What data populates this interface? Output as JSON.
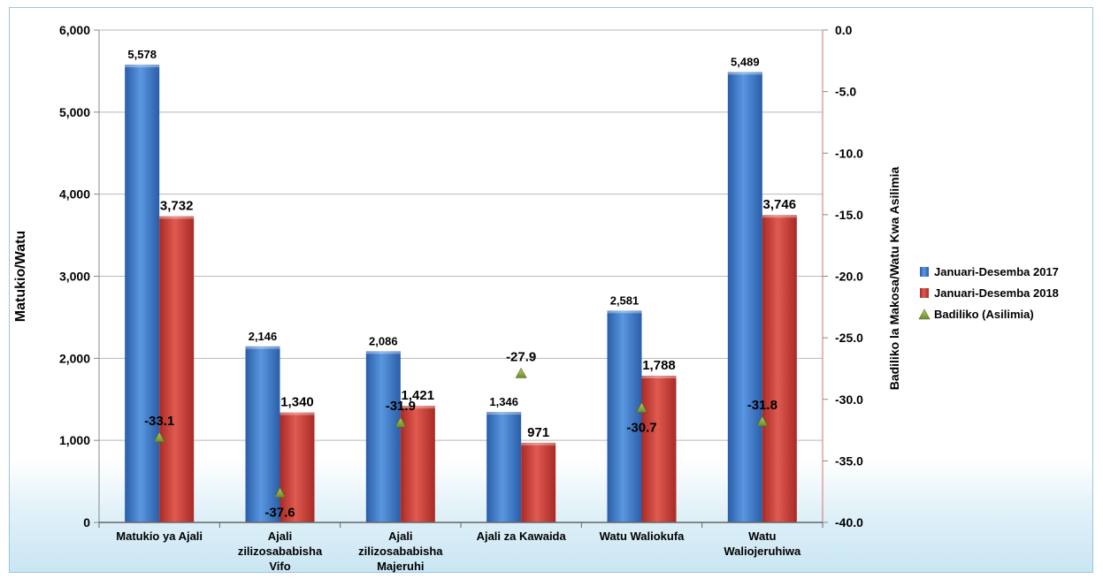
{
  "chart_data": {
    "type": "bar",
    "categories": [
      [
        "Matukio ya Ajali"
      ],
      [
        "Ajali",
        "zilizosababisha",
        "Vifo"
      ],
      [
        "Ajali",
        "zilizosababisha",
        "Majeruhi"
      ],
      [
        "Ajali za Kawaida"
      ],
      [
        "Watu Waliokufa"
      ],
      [
        "Watu",
        "Waliojeruhiwa"
      ]
    ],
    "series": [
      {
        "name": "Januari-Desemba 2017",
        "values": [
          5578,
          2146,
          2086,
          1346,
          2581,
          5489
        ],
        "labels": [
          "5,578",
          "2,146",
          "2,086",
          "1,346",
          "2,581",
          "5,489"
        ],
        "color": "#3a78c8"
      },
      {
        "name": "Januari-Desemba 2018",
        "values": [
          3732,
          1340,
          1421,
          971,
          1788,
          3746
        ],
        "labels": [
          "3,732",
          "1,340",
          "1,421",
          "971",
          "1,788",
          "3,746"
        ],
        "color": "#d23e3a"
      },
      {
        "name": "Badiliko (Asilimia)",
        "values": [
          -33.1,
          -37.6,
          -31.9,
          -27.9,
          -30.7,
          -31.8
        ],
        "labels": [
          "-33.1",
          "-37.6",
          "-31.9",
          "-27.9",
          "-30.7",
          "-31.8"
        ],
        "color": "#8aaa3c",
        "axis": "right",
        "marker": "triangle"
      }
    ],
    "ylabel": "Matukio/Watu",
    "y2label": "Badiliko la Makosa/Watu Kwa Asilimia",
    "ylim": [
      0,
      6000
    ],
    "y2lim": [
      -40,
      0
    ],
    "yticks": [
      "0",
      "1,000",
      "2,000",
      "3,000",
      "4,000",
      "5,000",
      "6,000"
    ],
    "y2ticks": [
      "0.0",
      "-5.0",
      "-10.0",
      "-15.0",
      "-20.0",
      "-25.0",
      "-30.0",
      "-35.0",
      "-40.0"
    ],
    "grid": true,
    "legend_position": "right"
  }
}
